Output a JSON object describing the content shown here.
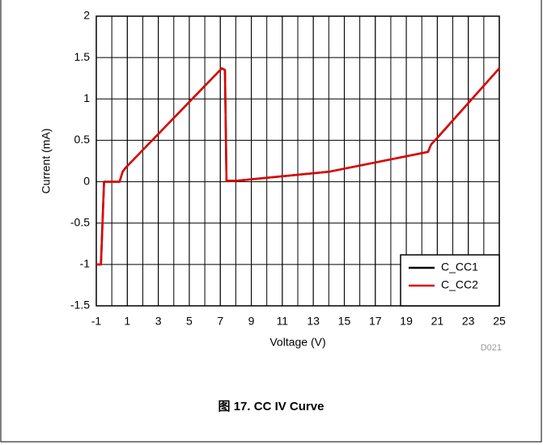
{
  "chart_data": {
    "type": "line",
    "x_label": "Voltage (V)",
    "y_label": "Current (mA)",
    "code": "D021",
    "caption": "图 17. CC IV Curve",
    "x": [
      -1,
      -0.7,
      -0.6,
      -0.5,
      0.5,
      0.7,
      0.9,
      7.1,
      7.3,
      7.4,
      8,
      14,
      20.4,
      20.6,
      21,
      25
    ],
    "series": [
      {
        "name": "C_CC1",
        "color": "#000000",
        "values": [
          -1,
          -1,
          -0.5,
          0,
          0,
          0.12,
          0.17,
          1.37,
          1.35,
          0.01,
          0.01,
          0.12,
          0.36,
          0.45,
          0.53,
          1.37
        ]
      },
      {
        "name": "C_CC2",
        "color": "#e00000",
        "values": [
          -1,
          -1,
          -0.5,
          0,
          0,
          0.12,
          0.17,
          1.37,
          1.35,
          0.01,
          0.01,
          0.12,
          0.36,
          0.45,
          0.53,
          1.37
        ]
      }
    ],
    "xlim": [
      -1,
      25
    ],
    "xticks": [
      -1,
      1,
      3,
      5,
      7,
      9,
      11,
      13,
      15,
      17,
      19,
      21,
      23,
      25
    ],
    "x_grid_step": 1,
    "ylim": [
      -1.5,
      2
    ],
    "yticks": [
      -1.5,
      -1,
      -0.5,
      0,
      0.5,
      1,
      1.5,
      2
    ],
    "grid": true,
    "legend": "lower right"
  }
}
